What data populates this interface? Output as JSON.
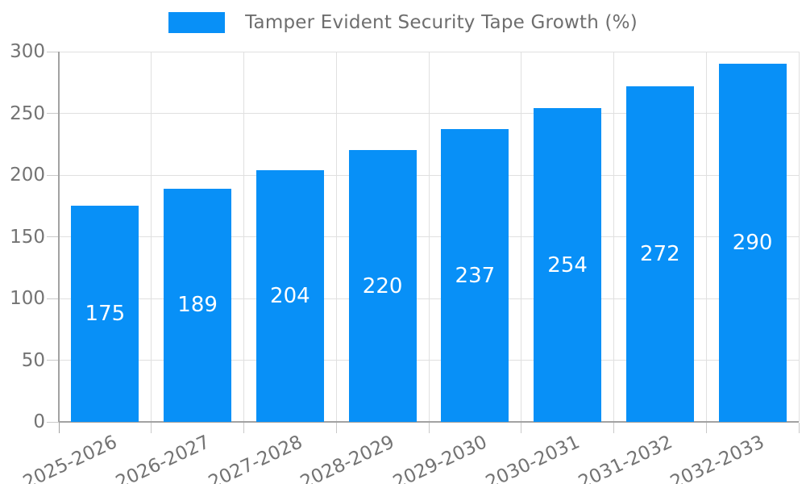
{
  "chart_data": {
    "type": "bar",
    "title": "Tamper Evident Security Tape Growth (%)",
    "legend_position": "top-center",
    "categories": [
      "2025-2026",
      "2026-2027",
      "2027-2028",
      "2028-2029",
      "2029-2030",
      "2030-2031",
      "2031-2032",
      "2032-2033"
    ],
    "values": [
      175,
      189,
      204,
      220,
      237,
      254,
      272,
      290
    ],
    "bar_labels": [
      "175",
      "189",
      "204",
      "220",
      "237",
      "254",
      "272",
      "290"
    ],
    "xlabel": "",
    "ylabel": "",
    "ylim": [
      0,
      300
    ],
    "yticks": [
      0,
      50,
      100,
      150,
      200,
      250,
      300
    ],
    "grid": true,
    "x_label_rotation_deg": -25,
    "colors": {
      "bar": "#0890f7",
      "bar_label_text": "#ffffff",
      "tick_text": "#737373",
      "legend_text": "#6e6e6e",
      "gridline": "#e0e0e0",
      "tick_mark": "#c9c9c9",
      "axis_line": "#a2a2a2",
      "background": "#ffffff"
    }
  }
}
